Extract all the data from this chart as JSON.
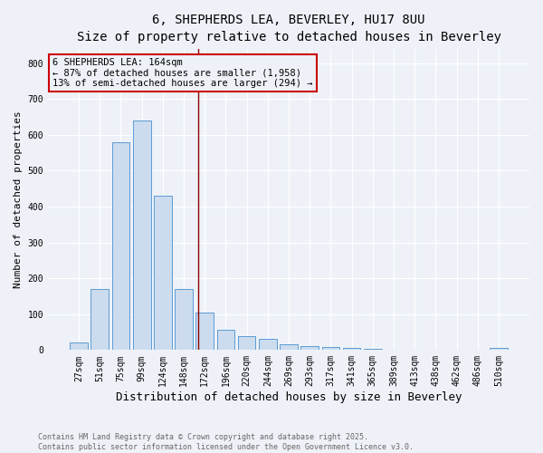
{
  "title_line1": "6, SHEPHERDS LEA, BEVERLEY, HU17 8UU",
  "title_line2": "Size of property relative to detached houses in Beverley",
  "xlabel": "Distribution of detached houses by size in Beverley",
  "ylabel": "Number of detached properties",
  "bar_labels": [
    "27sqm",
    "51sqm",
    "75sqm",
    "99sqm",
    "124sqm",
    "148sqm",
    "172sqm",
    "196sqm",
    "220sqm",
    "244sqm",
    "269sqm",
    "293sqm",
    "317sqm",
    "341sqm",
    "365sqm",
    "389sqm",
    "413sqm",
    "438sqm",
    "462sqm",
    "486sqm",
    "510sqm"
  ],
  "bar_values": [
    20,
    170,
    580,
    640,
    430,
    170,
    105,
    57,
    40,
    32,
    15,
    10,
    8,
    5,
    3,
    2,
    1,
    1,
    1,
    1,
    5
  ],
  "bar_color": "#ccdcee",
  "bar_edgecolor": "#5b9bd5",
  "vline_color": "#8b0000",
  "vline_index": 5.67,
  "annotation_text": "6 SHEPHERDS LEA: 164sqm\n← 87% of detached houses are smaller (1,958)\n13% of semi-detached houses are larger (294) →",
  "annotation_box_edgecolor": "#cc0000",
  "annotation_fontsize": 7.5,
  "ylim": [
    0,
    840
  ],
  "yticks": [
    0,
    100,
    200,
    300,
    400,
    500,
    600,
    700,
    800
  ],
  "background_color": "#eef2f8",
  "grid_color": "#ffffff",
  "footnote": "Contains HM Land Registry data © Crown copyright and database right 2025.\nContains public sector information licensed under the Open Government Licence v3.0.",
  "title_fontsize": 10,
  "subtitle_fontsize": 9,
  "xlabel_fontsize": 9,
  "ylabel_fontsize": 8,
  "tick_fontsize": 7,
  "footnote_fontsize": 6,
  "footnote_color": "#666666"
}
